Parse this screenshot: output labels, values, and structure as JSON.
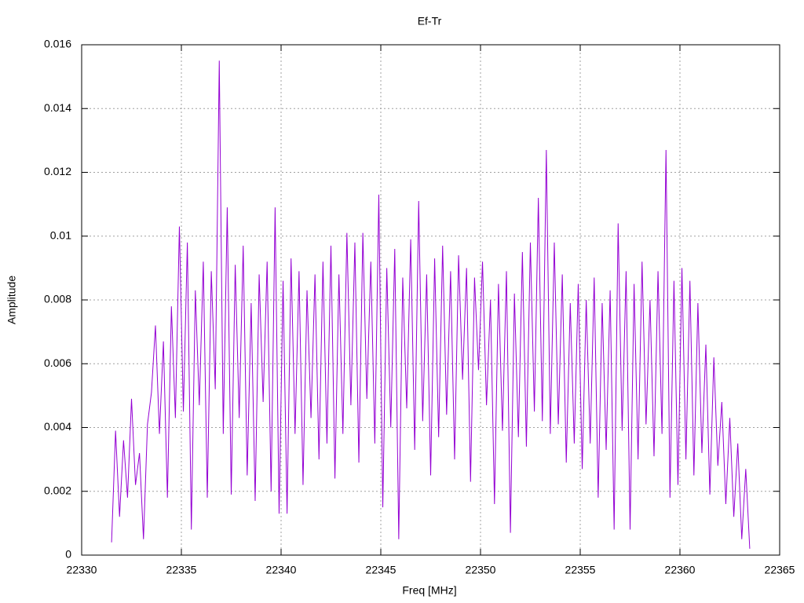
{
  "chart_data": {
    "type": "line",
    "title": "Ef-Tr",
    "xlabel": "Freq [MHz]",
    "ylabel": "Amplitude",
    "color": "#9400d3",
    "grid": true,
    "xlim": [
      22330,
      22365
    ],
    "xticks": [
      22330,
      22335,
      22340,
      22345,
      22350,
      22355,
      22360,
      22365
    ],
    "ylim": [
      0,
      0.016
    ],
    "yticks": [
      0,
      0.002,
      0.004,
      0.006,
      0.008,
      0.01,
      0.012,
      0.014,
      0.016
    ],
    "x": [
      22331.5,
      22331.7,
      22331.9,
      22332.1,
      22332.3,
      22332.5,
      22332.7,
      22332.9,
      22333.1,
      22333.3,
      22333.5,
      22333.7,
      22333.9,
      22334.1,
      22334.3,
      22334.5,
      22334.7,
      22334.9,
      22335.1,
      22335.3,
      22335.5,
      22335.7,
      22335.9,
      22336.1,
      22336.3,
      22336.5,
      22336.7,
      22336.9,
      22337.1,
      22337.3,
      22337.5,
      22337.7,
      22337.9,
      22338.1,
      22338.3,
      22338.5,
      22338.7,
      22338.9,
      22339.1,
      22339.3,
      22339.5,
      22339.7,
      22339.9,
      22340.1,
      22340.3,
      22340.5,
      22340.7,
      22340.9,
      22341.1,
      22341.3,
      22341.5,
      22341.7,
      22341.9,
      22342.1,
      22342.3,
      22342.5,
      22342.7,
      22342.9,
      22343.1,
      22343.3,
      22343.5,
      22343.7,
      22343.9,
      22344.1,
      22344.3,
      22344.5,
      22344.7,
      22344.9,
      22345.1,
      22345.3,
      22345.5,
      22345.7,
      22345.9,
      22346.1,
      22346.3,
      22346.5,
      22346.7,
      22346.9,
      22347.1,
      22347.3,
      22347.5,
      22347.7,
      22347.9,
      22348.1,
      22348.3,
      22348.5,
      22348.7,
      22348.9,
      22349.1,
      22349.3,
      22349.5,
      22349.7,
      22349.9,
      22350.1,
      22350.3,
      22350.5,
      22350.7,
      22350.9,
      22351.1,
      22351.3,
      22351.5,
      22351.7,
      22351.9,
      22352.1,
      22352.3,
      22352.5,
      22352.7,
      22352.9,
      22353.1,
      22353.3,
      22353.5,
      22353.7,
      22353.9,
      22354.1,
      22354.3,
      22354.5,
      22354.7,
      22354.9,
      22355.1,
      22355.3,
      22355.5,
      22355.7,
      22355.9,
      22356.1,
      22356.3,
      22356.5,
      22356.7,
      22356.9,
      22357.1,
      22357.3,
      22357.5,
      22357.7,
      22357.9,
      22358.1,
      22358.3,
      22358.5,
      22358.7,
      22358.9,
      22359.1,
      22359.3,
      22359.5,
      22359.7,
      22359.9,
      22360.1,
      22360.3,
      22360.5,
      22360.7,
      22360.9,
      22361.1,
      22361.3,
      22361.5,
      22361.7,
      22361.9,
      22362.1,
      22362.3,
      22362.5,
      22362.7,
      22362.9,
      22363.1,
      22363.3,
      22363.5
    ],
    "values": [
      0.0004,
      0.0039,
      0.0012,
      0.0036,
      0.0018,
      0.0049,
      0.0022,
      0.0032,
      0.0005,
      0.0041,
      0.0051,
      0.0072,
      0.0038,
      0.0067,
      0.0018,
      0.0078,
      0.0043,
      0.0103,
      0.0045,
      0.0098,
      0.0008,
      0.0083,
      0.0047,
      0.0092,
      0.0018,
      0.0089,
      0.0052,
      0.0155,
      0.0038,
      0.0109,
      0.0019,
      0.0091,
      0.0043,
      0.0097,
      0.0025,
      0.0079,
      0.0017,
      0.0088,
      0.0048,
      0.0092,
      0.002,
      0.0109,
      0.0013,
      0.0086,
      0.0013,
      0.0093,
      0.0038,
      0.0089,
      0.0022,
      0.0083,
      0.0043,
      0.0088,
      0.003,
      0.0092,
      0.0035,
      0.0097,
      0.0024,
      0.0088,
      0.0038,
      0.0101,
      0.0047,
      0.0098,
      0.0029,
      0.0101,
      0.0049,
      0.0092,
      0.0035,
      0.0113,
      0.0015,
      0.009,
      0.004,
      0.0096,
      0.0005,
      0.0087,
      0.0046,
      0.0099,
      0.0033,
      0.0111,
      0.0042,
      0.0088,
      0.0025,
      0.0093,
      0.0037,
      0.0097,
      0.0044,
      0.0089,
      0.003,
      0.0094,
      0.0055,
      0.009,
      0.0023,
      0.0087,
      0.0058,
      0.0092,
      0.0047,
      0.008,
      0.0016,
      0.0085,
      0.0039,
      0.0089,
      0.0007,
      0.0082,
      0.0037,
      0.0095,
      0.0034,
      0.0098,
      0.0045,
      0.0112,
      0.0042,
      0.0127,
      0.0038,
      0.0098,
      0.0041,
      0.0088,
      0.0029,
      0.0079,
      0.0035,
      0.0085,
      0.0027,
      0.008,
      0.0035,
      0.0087,
      0.0018,
      0.0079,
      0.0033,
      0.0083,
      0.0008,
      0.0104,
      0.0039,
      0.0089,
      0.0008,
      0.0085,
      0.003,
      0.0092,
      0.0041,
      0.008,
      0.0031,
      0.0089,
      0.0038,
      0.0127,
      0.0018,
      0.0086,
      0.0022,
      0.009,
      0.003,
      0.0086,
      0.0025,
      0.0079,
      0.0032,
      0.0066,
      0.0019,
      0.0062,
      0.0028,
      0.0048,
      0.0016,
      0.0043,
      0.0012,
      0.0035,
      0.0005,
      0.0027,
      0.0002
    ]
  }
}
